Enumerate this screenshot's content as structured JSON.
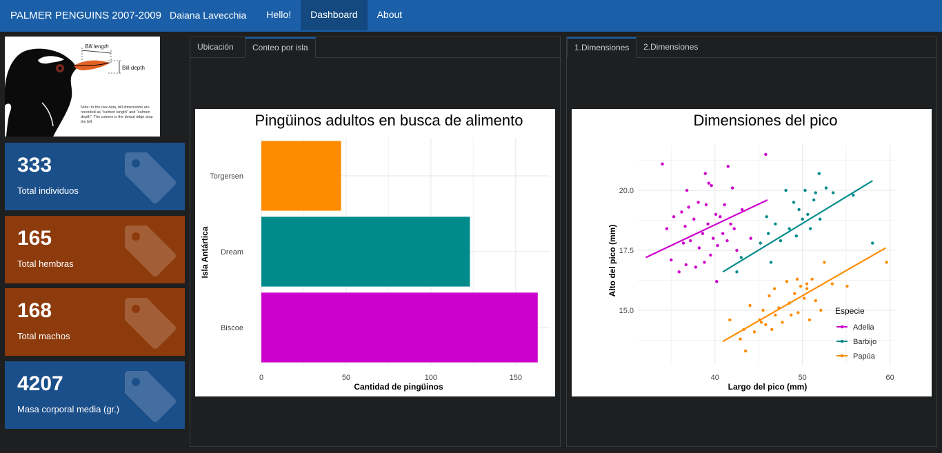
{
  "navbar": {
    "brand": "PALMER PENGUINS 2007-2009",
    "author": "Daiana Lavecchia",
    "items": [
      "Hello!",
      "Dashboard",
      "About"
    ]
  },
  "logo": {
    "bill_length": "Bill length",
    "bill_depth": "Bill depth",
    "note": "Note: In the raw data, bill dimensions are recorded as \"culmen length\" and \"culmen depth\". The culmen is the dorsal ridge atop the bill."
  },
  "stats": [
    {
      "value": "333",
      "label": "Total individuos",
      "color": "#1b4f8a"
    },
    {
      "value": "165",
      "label": "Total hembras",
      "color": "#8d3b0c"
    },
    {
      "value": "168",
      "label": "Total machos",
      "color": "#8d3b0c"
    },
    {
      "value": "4207",
      "label": "Masa corporal media (gr.)",
      "color": "#1b4f8a"
    }
  ],
  "left_panel": {
    "tabs": [
      "Ubicación",
      "Conteo por isla"
    ]
  },
  "right_panel": {
    "tabs": [
      "1.Dimensiones",
      "2.Dimensiones"
    ]
  },
  "chart_data": [
    {
      "type": "bar",
      "orientation": "horizontal",
      "title": "Pingüinos adultos en busca de alimento",
      "xlabel": "Cantidad de pingüinos",
      "ylabel": "Isla Antártica",
      "categories": [
        "Torgersen",
        "Dream",
        "Biscoe"
      ],
      "values": [
        47,
        123,
        163
      ],
      "colors": [
        "#ff8c00",
        "#008b8b",
        "#cc00cc"
      ],
      "xlim": [
        0,
        170
      ],
      "xticks": [
        0,
        50,
        100,
        150
      ],
      "grid": true
    },
    {
      "type": "scatter",
      "title": "Dimensiones del pico",
      "xlabel": "Largo del pico (mm)",
      "ylabel": "Alto del pico (mm)",
      "xlim": [
        31.2,
        60.5
      ],
      "ylim": [
        12.7,
        21.9
      ],
      "xticks": [
        40,
        50,
        60
      ],
      "yticks": [
        15.0,
        17.5,
        20.0
      ],
      "legend_title": "Especie",
      "legend_position": "right",
      "grid": true,
      "series": [
        {
          "name": "Adelia",
          "color": "#cc00cc",
          "fit": [
            [
              32.1,
              17.2
            ],
            [
              46.0,
              19.6
            ]
          ],
          "x": [
            34.5,
            35.0,
            35.3,
            35.9,
            36.2,
            36.4,
            36.6,
            36.7,
            37.0,
            37.2,
            37.6,
            37.8,
            38.1,
            38.2,
            38.6,
            38.8,
            39.0,
            39.2,
            39.5,
            39.6,
            39.8,
            40.1,
            40.3,
            40.6,
            40.9,
            41.1,
            41.4,
            41.8,
            42.0,
            42.2,
            42.5,
            43.1,
            44.1,
            45.8,
            36.8,
            38.9,
            40.2,
            41.5,
            34.0,
            39.3
          ],
          "y": [
            18.4,
            17.1,
            18.9,
            16.6,
            19.1,
            17.8,
            18.5,
            16.9,
            19.3,
            17.9,
            18.8,
            16.8,
            19.5,
            17.6,
            18.2,
            17.0,
            19.4,
            18.6,
            17.3,
            20.2,
            18.0,
            19.0,
            17.7,
            18.9,
            18.2,
            19.4,
            17.9,
            18.6,
            20.1,
            18.4,
            17.5,
            19.2,
            18.0,
            21.5,
            20.0,
            20.7,
            16.2,
            21.0,
            21.1,
            20.3
          ]
        },
        {
          "name": "Barbijo",
          "color": "#008b8b",
          "fit": [
            [
              40.9,
              16.6
            ],
            [
              58.0,
              20.4
            ]
          ],
          "x": [
            43.0,
            45.2,
            46.1,
            46.4,
            46.9,
            47.5,
            48.5,
            49.0,
            49.3,
            49.6,
            50.0,
            50.3,
            50.6,
            50.9,
            51.3,
            51.5,
            51.9,
            52.0,
            52.7,
            53.5,
            55.8,
            58.0,
            42.5,
            45.9,
            48.1
          ],
          "y": [
            17.2,
            17.8,
            18.2,
            17.0,
            18.6,
            17.9,
            18.4,
            19.5,
            18.1,
            19.2,
            18.8,
            20.0,
            19.0,
            18.4,
            19.6,
            19.9,
            20.7,
            18.8,
            20.1,
            19.9,
            19.8,
            17.8,
            16.6,
            18.9,
            20.0
          ]
        },
        {
          "name": "Papúa",
          "color": "#ff8c00",
          "fit": [
            [
              40.9,
              13.7
            ],
            [
              59.5,
              17.6
            ]
          ],
          "x": [
            41.7,
            42.9,
            43.3,
            44.0,
            44.5,
            45.1,
            45.5,
            45.8,
            46.2,
            46.5,
            46.8,
            47.3,
            47.7,
            48.2,
            48.5,
            48.7,
            49.1,
            49.5,
            49.8,
            50.2,
            50.5,
            50.8,
            51.1,
            51.5,
            52.1,
            52.5,
            53.4,
            55.1,
            59.6,
            43.5,
            45.3,
            46.9,
            49.4,
            50.5
          ],
          "y": [
            14.6,
            13.8,
            14.2,
            15.2,
            14.1,
            14.6,
            15.0,
            14.4,
            15.6,
            14.2,
            15.9,
            15.1,
            14.5,
            16.2,
            15.3,
            14.8,
            15.7,
            14.9,
            16.0,
            15.5,
            15.9,
            14.6,
            16.3,
            15.4,
            15.0,
            17.0,
            16.1,
            16.0,
            17.0,
            13.3,
            14.5,
            14.8,
            16.3,
            16.1
          ]
        }
      ]
    }
  ]
}
